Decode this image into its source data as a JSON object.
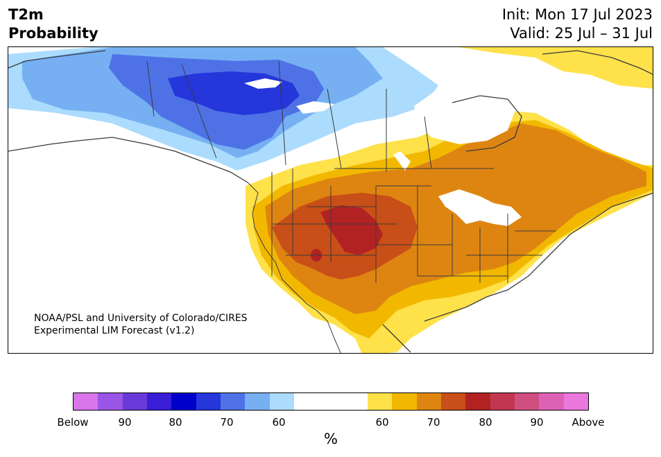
{
  "title": {
    "left_line1": "T2m",
    "left_line2": "Probability",
    "right_line1": "Init: Mon 17 Jul 2023",
    "right_line2": "Valid: 25 Jul – 31 Jul"
  },
  "credit": {
    "line1": "NOAA/PSL and University of Colorado/CIRES",
    "line2": "Experimental LIM Forecast (v1.2)"
  },
  "colorbar": {
    "colors": [
      "#d974ea",
      "#9a55e6",
      "#6a3ad9",
      "#3a1dd6",
      "#0000cc",
      "#2536db",
      "#4e72e6",
      "#76b0f3",
      "#acdcfd",
      "#ffffff",
      "#ffe14a",
      "#f2b800",
      "#de8511",
      "#c84f17",
      "#b22222",
      "#c23650",
      "#cf4f80",
      "#dd62b6",
      "#ea78dd"
    ],
    "labels": [
      "Below",
      "90",
      "80",
      "70",
      "60",
      "60",
      "70",
      "80",
      "90",
      "Above"
    ],
    "unit": "%"
  },
  "map": {
    "region": "North America",
    "colors": {
      "cold_60": "#acdcfd",
      "cold_60b": "#76b0f3",
      "cold_70": "#4e72e6",
      "cold_75": "#2536db",
      "warm_60": "#ffe14a",
      "warm_65": "#f2b800",
      "warm_70": "#de8511",
      "warm_75": "#c84f17",
      "warm_80": "#b22222",
      "border": "#3a3a3a"
    }
  }
}
